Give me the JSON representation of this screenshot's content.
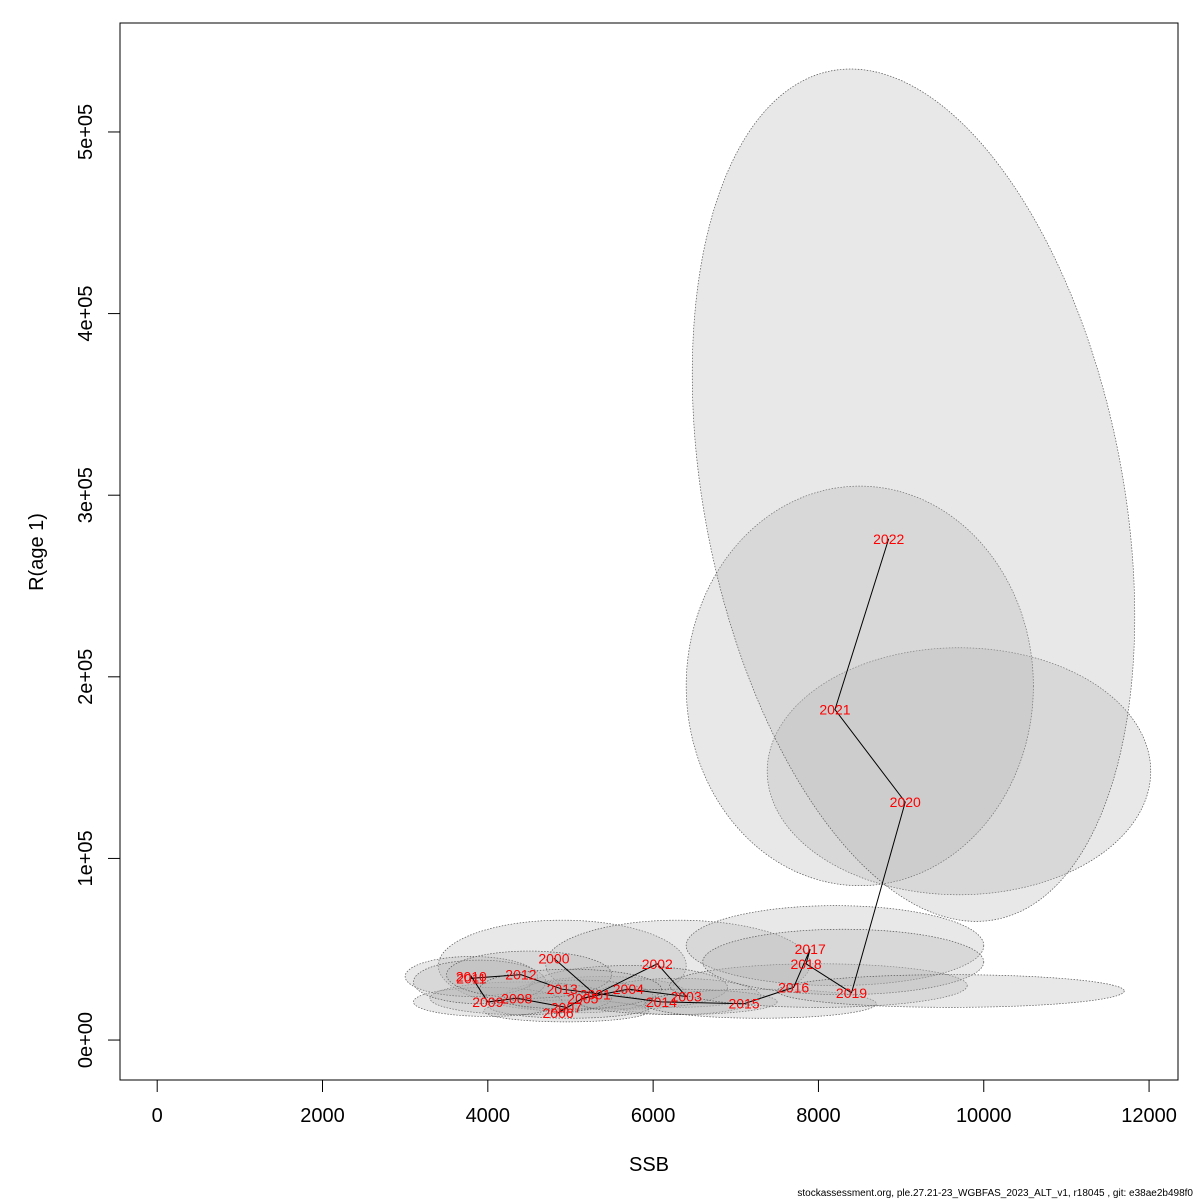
{
  "chart_data": {
    "type": "scatter",
    "xlabel": "SSB",
    "ylabel": "R(age 1)",
    "xlim": [
      -450,
      12350
    ],
    "ylim": [
      -22000,
      560000
    ],
    "x_ticks": [
      0,
      2000,
      4000,
      6000,
      8000,
      10000,
      12000
    ],
    "x_tick_labels": [
      "0",
      "2000",
      "4000",
      "6000",
      "8000",
      "10000",
      "12000"
    ],
    "y_ticks": [
      0,
      100000,
      200000,
      300000,
      400000,
      500000
    ],
    "y_tick_labels": [
      "0e+00",
      "1e+05",
      "2e+05",
      "3e+05",
      "4e+05",
      "5e+05"
    ],
    "grid": false,
    "point_color": "#ff0000",
    "line_color": "#000000",
    "ellipse_fill": "#b4b4b4",
    "points": [
      {
        "year": "2000",
        "ssb": 4800,
        "r": 45000
      },
      {
        "year": "2001",
        "ssb": 5300,
        "r": 25000
      },
      {
        "year": "2002",
        "ssb": 6050,
        "r": 42000
      },
      {
        "year": "2003",
        "ssb": 6400,
        "r": 24000
      },
      {
        "year": "2004",
        "ssb": 5700,
        "r": 28000
      },
      {
        "year": "2005",
        "ssb": 5150,
        "r": 23000
      },
      {
        "year": "2006",
        "ssb": 4850,
        "r": 15000
      },
      {
        "year": "2007",
        "ssb": 4950,
        "r": 18000
      },
      {
        "year": "2008",
        "ssb": 4350,
        "r": 23000
      },
      {
        "year": "2009",
        "ssb": 4000,
        "r": 21000
      },
      {
        "year": "2010",
        "ssb": 3800,
        "r": 35000
      },
      {
        "year": "2011",
        "ssb": 3800,
        "r": 34000
      },
      {
        "year": "2012",
        "ssb": 4400,
        "r": 36000
      },
      {
        "year": "2013",
        "ssb": 4900,
        "r": 28000
      },
      {
        "year": "2014",
        "ssb": 6100,
        "r": 21000
      },
      {
        "year": "2015",
        "ssb": 7100,
        "r": 20000
      },
      {
        "year": "2016",
        "ssb": 7700,
        "r": 29000
      },
      {
        "year": "2017",
        "ssb": 7900,
        "r": 50000
      },
      {
        "year": "2018",
        "ssb": 7850,
        "r": 42000
      },
      {
        "year": "2019",
        "ssb": 8400,
        "r": 26000
      },
      {
        "year": "2020",
        "ssb": 9050,
        "r": 131000
      },
      {
        "year": "2021",
        "ssb": 8200,
        "r": 182000
      },
      {
        "year": "2022",
        "ssb": 8850,
        "r": 276000
      }
    ],
    "ellipses": [
      {
        "year": "2000",
        "cx": 4900,
        "cy": 41000,
        "rx": 1500,
        "ry": 25000,
        "rot": 0
      },
      {
        "year": "2001",
        "cx": 5400,
        "cy": 26000,
        "rx": 1000,
        "ry": 9000,
        "rot": 0
      },
      {
        "year": "2002",
        "cx": 6300,
        "cy": 42000,
        "rx": 1600,
        "ry": 24000,
        "rot": 0
      },
      {
        "year": "2003",
        "cx": 6300,
        "cy": 24000,
        "rx": 1000,
        "ry": 10000,
        "rot": 0
      },
      {
        "year": "2004",
        "cx": 5700,
        "cy": 29000,
        "rx": 1200,
        "ry": 12000,
        "rot": 0
      },
      {
        "year": "2005",
        "cx": 5100,
        "cy": 24000,
        "rx": 900,
        "ry": 9000,
        "rot": 0
      },
      {
        "year": "2006",
        "cx": 4950,
        "cy": 16000,
        "rx": 1000,
        "ry": 6000,
        "rot": 0
      },
      {
        "year": "2007",
        "cx": 5000,
        "cy": 19000,
        "rx": 1000,
        "ry": 7000,
        "rot": 0
      },
      {
        "year": "2008",
        "cx": 4400,
        "cy": 23000,
        "rx": 1100,
        "ry": 9000,
        "rot": 0
      },
      {
        "year": "2009",
        "cx": 4000,
        "cy": 21000,
        "rx": 900,
        "ry": 8000,
        "rot": 0
      },
      {
        "year": "2010",
        "cx": 3800,
        "cy": 35000,
        "rx": 800,
        "ry": 11000,
        "rot": 0
      },
      {
        "year": "2011",
        "cx": 3900,
        "cy": 32000,
        "rx": 800,
        "ry": 12000,
        "rot": 0
      },
      {
        "year": "2012",
        "cx": 4500,
        "cy": 36000,
        "rx": 1000,
        "ry": 13000,
        "rot": 0
      },
      {
        "year": "2013",
        "cx": 5000,
        "cy": 28000,
        "rx": 1100,
        "ry": 11000,
        "rot": 0
      },
      {
        "year": "2014",
        "cx": 6300,
        "cy": 21000,
        "rx": 1200,
        "ry": 7000,
        "rot": 0
      },
      {
        "year": "2015",
        "cx": 7300,
        "cy": 20000,
        "rx": 1400,
        "ry": 8000,
        "rot": 0
      },
      {
        "year": "2016",
        "cx": 8000,
        "cy": 30000,
        "rx": 1800,
        "ry": 12000,
        "rot": 0
      },
      {
        "year": "2017",
        "cx": 8200,
        "cy": 52000,
        "rx": 1800,
        "ry": 22000,
        "rot": 0
      },
      {
        "year": "2018",
        "cx": 8300,
        "cy": 43000,
        "rx": 1700,
        "ry": 18000,
        "rot": 0
      },
      {
        "year": "2019",
        "cx": 9600,
        "cy": 27000,
        "rx": 2100,
        "ry": 9000,
        "rot": 0
      },
      {
        "year": "2020",
        "cx": 9700,
        "cy": 148000,
        "rx": 2320,
        "ry": 68000,
        "rot": 0
      },
      {
        "year": "2021",
        "cx": 8500,
        "cy": 195000,
        "rx": 2100,
        "ry": 110000,
        "rot": 0
      },
      {
        "year": "2022",
        "cx": 9150,
        "cy": 300000,
        "rx": 2530,
        "ry": 238000,
        "rot": -11
      }
    ],
    "footer": "stockassessment.org, ple.27.21-23_WGBFAS_2023_ALT_v1, r18045 , git: e38ae2b498f0"
  }
}
